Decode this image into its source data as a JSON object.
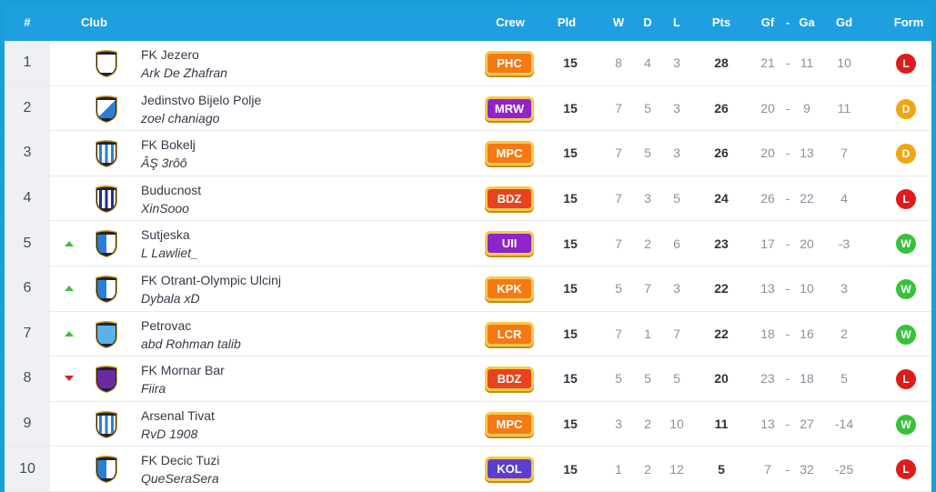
{
  "header": {
    "rank": "#",
    "club": "Club",
    "crew": "Crew",
    "pld": "Pld",
    "w": "W",
    "d": "D",
    "l": "L",
    "pts": "Pts",
    "gf": "Gf",
    "sep": "-",
    "ga": "Ga",
    "gd": "Gd",
    "form": "Form"
  },
  "colors": {
    "header_bg": "#1f9fe0",
    "form_W": "#37c23b",
    "form_D": "#f0a60f",
    "form_L": "#e01b1b"
  },
  "rows": [
    {
      "rank": "1",
      "trend": "",
      "club": "FK Jezero",
      "manager": "Ark De Zhafran",
      "crew": "PHC",
      "crew_color": "#f57a14",
      "pld": "15",
      "w": "8",
      "d": "4",
      "l": "3",
      "pts": "28",
      "gf": "21",
      "ga": "11",
      "gd": "10",
      "form": "L",
      "shield_icon": "shield-white-icon"
    },
    {
      "rank": "2",
      "trend": "",
      "club": "Jedinstvo Bijelo Polje",
      "manager": "zoel chaniago",
      "crew": "MRW",
      "crew_color": "#8e24c9",
      "pld": "15",
      "w": "7",
      "d": "5",
      "l": "3",
      "pts": "26",
      "gf": "20",
      "ga": "9",
      "gd": "11",
      "form": "D",
      "shield_icon": "shield-blue-white-diagonal-icon"
    },
    {
      "rank": "3",
      "trend": "",
      "club": "FK Bokelj",
      "manager": "ÂŞ 3rôô",
      "crew": "MPC",
      "crew_color": "#f57a14",
      "pld": "15",
      "w": "7",
      "d": "5",
      "l": "3",
      "pts": "26",
      "gf": "20",
      "ga": "13",
      "gd": "7",
      "form": "D",
      "shield_icon": "shield-blue-stripes-icon"
    },
    {
      "rank": "4",
      "trend": "",
      "club": "Buducnost",
      "manager": "XinSooo",
      "crew": "BDZ",
      "crew_color": "#e8431e",
      "pld": "15",
      "w": "7",
      "d": "3",
      "l": "5",
      "pts": "24",
      "gf": "26",
      "ga": "22",
      "gd": "4",
      "form": "L",
      "shield_icon": "shield-navy-stripes-icon"
    },
    {
      "rank": "5",
      "trend": "up",
      "club": "Sutjeska",
      "manager": "L Lawliet_",
      "crew": "UII",
      "crew_color": "#8e24c9",
      "pld": "15",
      "w": "7",
      "d": "2",
      "l": "6",
      "pts": "23",
      "gf": "17",
      "ga": "20",
      "gd": "-3",
      "form": "W",
      "shield_icon": "shield-blue-half-icon"
    },
    {
      "rank": "6",
      "trend": "up",
      "club": "FK Otrant-Olympic Ulcinj",
      "manager": "Dybala xD",
      "crew": "KPK",
      "crew_color": "#f57a14",
      "pld": "15",
      "w": "5",
      "d": "7",
      "l": "3",
      "pts": "22",
      "gf": "13",
      "ga": "10",
      "gd": "3",
      "form": "W",
      "shield_icon": "shield-blue-half-icon"
    },
    {
      "rank": "7",
      "trend": "up",
      "club": "Petrovac",
      "manager": "abd Rohman talib",
      "crew": "LCR",
      "crew_color": "#f57a14",
      "pld": "15",
      "w": "7",
      "d": "1",
      "l": "7",
      "pts": "22",
      "gf": "18",
      "ga": "16",
      "gd": "2",
      "form": "W",
      "shield_icon": "shield-light-blue-icon"
    },
    {
      "rank": "8",
      "trend": "down",
      "club": "FK Mornar Bar",
      "manager": "Fiira",
      "crew": "BDZ",
      "crew_color": "#e8431e",
      "pld": "15",
      "w": "5",
      "d": "5",
      "l": "5",
      "pts": "20",
      "gf": "23",
      "ga": "18",
      "gd": "5",
      "form": "L",
      "shield_icon": "shield-purple-icon"
    },
    {
      "rank": "9",
      "trend": "",
      "club": "Arsenal Tivat",
      "manager": "RvD 1908",
      "crew": "MPC",
      "crew_color": "#f57a14",
      "pld": "15",
      "w": "3",
      "d": "2",
      "l": "10",
      "pts": "11",
      "gf": "13",
      "ga": "27",
      "gd": "-14",
      "form": "W",
      "shield_icon": "shield-blue-stripes-icon"
    },
    {
      "rank": "10",
      "trend": "",
      "club": "FK Decic Tuzi",
      "manager": "QueSeraSera",
      "crew": "KOL",
      "crew_color": "#5a3fcf",
      "pld": "15",
      "w": "1",
      "d": "2",
      "l": "12",
      "pts": "5",
      "gf": "7",
      "ga": "32",
      "gd": "-25",
      "form": "L",
      "shield_icon": "shield-blue-half-icon"
    }
  ]
}
